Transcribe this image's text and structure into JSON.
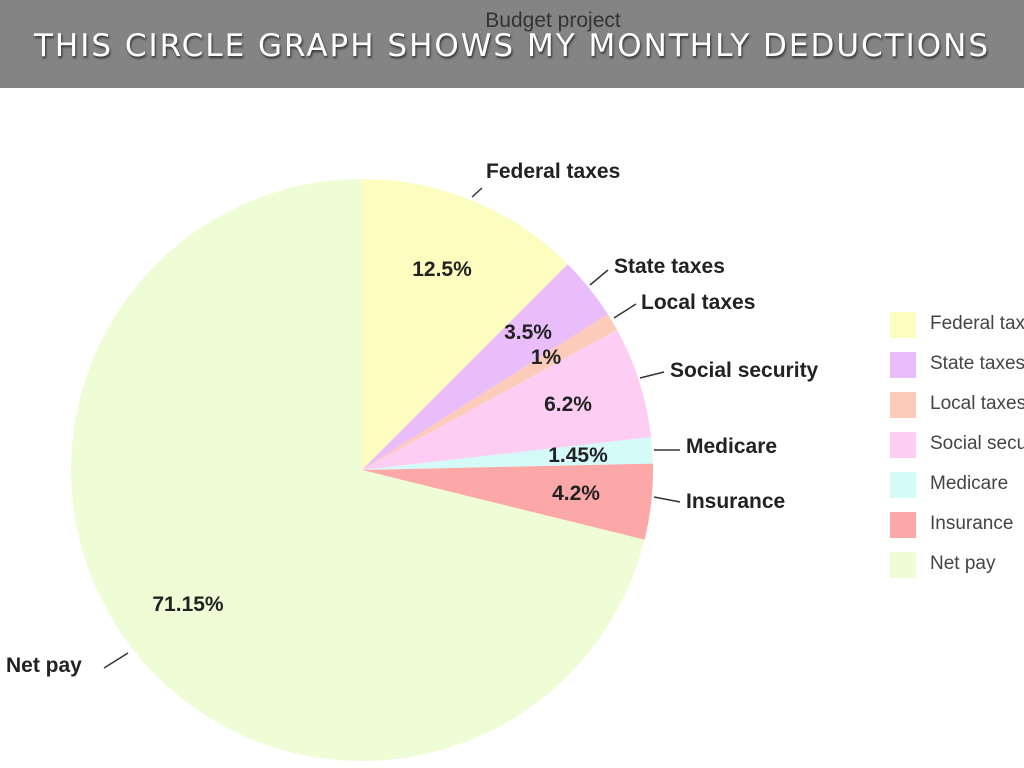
{
  "slide_title": "THIS CIRCLE GRAPH SHOWS MY MONTHLY DEDUCTIONS",
  "chart_data": {
    "type": "pie",
    "title": "Budget project",
    "categories": [
      "Federal taxes",
      "State taxes",
      "Local taxes",
      "Social security",
      "Medicare",
      "Insurance",
      "Net pay"
    ],
    "values": [
      12.5,
      3.5,
      1,
      6.2,
      1.45,
      4.2,
      71.15
    ],
    "value_labels": [
      "12.5%",
      "3.5%",
      "1%",
      "6.2%",
      "1.45%",
      "4.2%",
      "71.15%"
    ],
    "colors": [
      "#fdfdc0",
      "#e9bdf9",
      "#fdcbb9",
      "#fdcdf3",
      "#d4fbf8",
      "#fda8a8",
      "#eefdd6"
    ],
    "start_angle": "top",
    "direction": "clockwise",
    "legend": "right"
  }
}
